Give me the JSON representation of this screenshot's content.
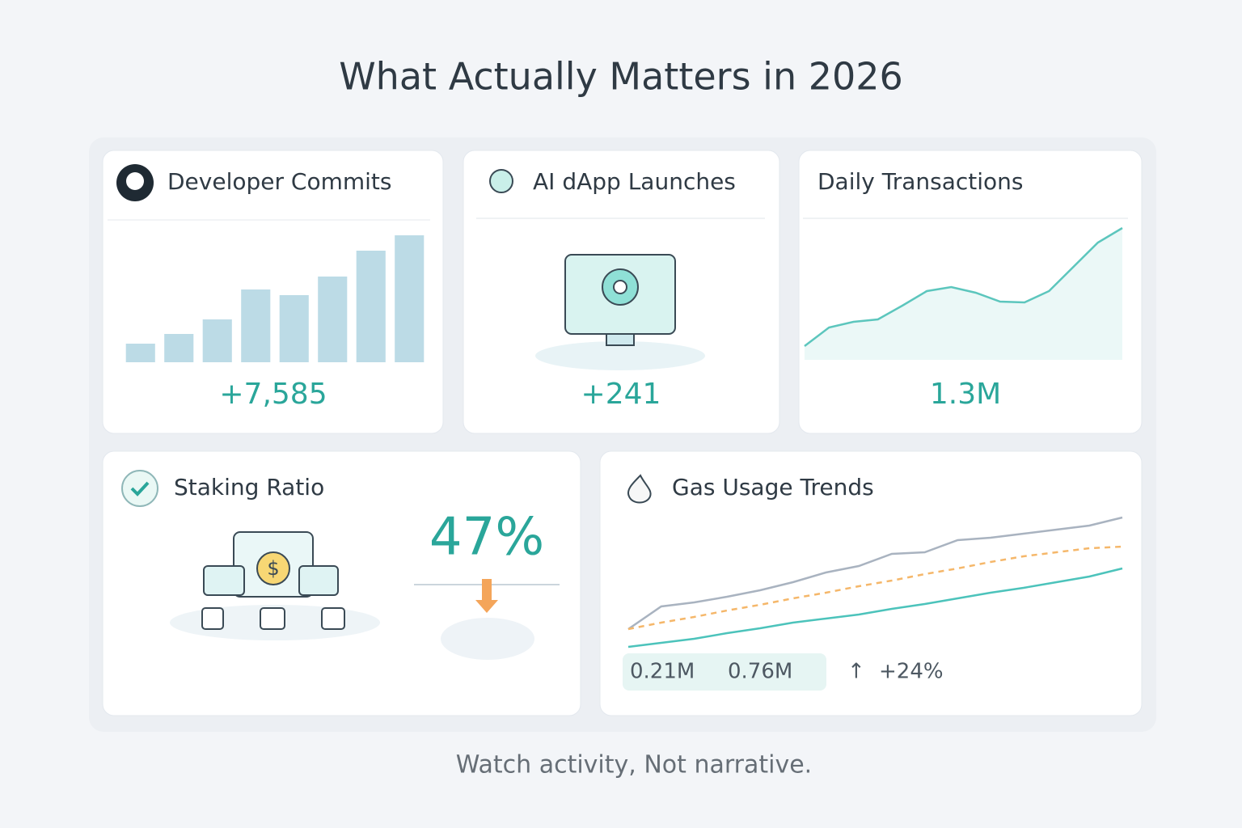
{
  "title": "What Actually Matters in 2026",
  "footer": "Watch activity, Not narrative.",
  "cards": [
    {
      "title": "Developer Commits",
      "value": "+7,585",
      "chart": {
        "type": "bar",
        "color": "#bcdbe6",
        "ylim": [
          0,
          175
        ],
        "values": [
          23,
          35,
          53,
          90,
          83,
          106,
          138,
          157
        ]
      }
    },
    {
      "title": "AI dApp Launches",
      "value": "+241"
    },
    {
      "title": "Daily Transactions",
      "value": "1.3M",
      "chart": {
        "type": "area",
        "color": "#5cc6bd",
        "ylim": [
          0,
          175
        ],
        "values": [
          17,
          40,
          47,
          50,
          67,
          85,
          90,
          83,
          72,
          71,
          85,
          115,
          145,
          163
        ]
      }
    },
    {
      "title": "Staking Ratio",
      "value": "47%"
    },
    {
      "title": "Gas Usage Trends",
      "chart": {
        "type": "line",
        "ylim": [
          0,
          175
        ],
        "series": [
          {
            "color": "#a9b3c0",
            "dashed": false,
            "values": [
              27,
              55,
              60,
              67,
              75,
              85,
              97,
              105,
              120,
              122,
              137,
              140,
              145,
              150,
              155,
              165
            ]
          },
          {
            "color": "#f5b76a",
            "dashed": true,
            "values": [
              27,
              35,
              42,
              50,
              57,
              65,
              72,
              80,
              87,
              95,
              102,
              110,
              117,
              122,
              127,
              129
            ]
          },
          {
            "color": "#4cc3bb",
            "dashed": false,
            "values": [
              5,
              10,
              15,
              22,
              28,
              35,
              40,
              45,
              52,
              58,
              65,
              72,
              78,
              85,
              92,
              102
            ]
          }
        ]
      },
      "stats": [
        "0.21M",
        "0.76M",
        "↑",
        "+24%"
      ]
    }
  ]
}
